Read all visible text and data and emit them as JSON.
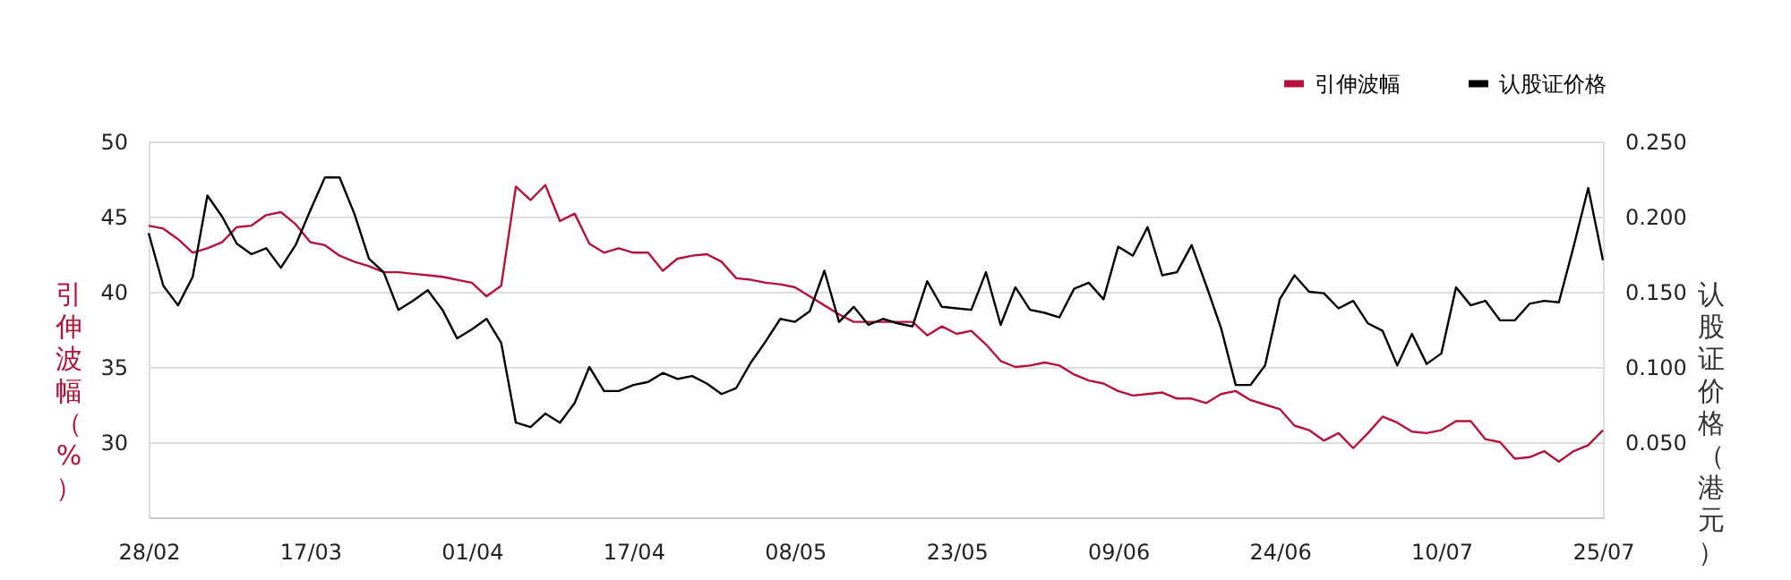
{
  "chart_data": {
    "type": "line",
    "categories": [
      "28/02",
      null,
      null,
      null,
      null,
      null,
      null,
      null,
      null,
      null,
      null,
      "17/03",
      null,
      null,
      null,
      null,
      null,
      null,
      null,
      null,
      null,
      null,
      "01/04",
      null,
      null,
      null,
      null,
      null,
      null,
      null,
      null,
      null,
      null,
      "17/04",
      null,
      null,
      null,
      null,
      null,
      null,
      null,
      null,
      null,
      null,
      "08/05",
      null,
      null,
      null,
      null,
      null,
      null,
      null,
      null,
      null,
      null,
      "23/05",
      null,
      null,
      null,
      null,
      null,
      null,
      null,
      null,
      null,
      null,
      "09/06",
      null,
      null,
      null,
      null,
      null,
      null,
      null,
      null,
      null,
      null,
      "24/06",
      null,
      null,
      null,
      null,
      null,
      null,
      null,
      null,
      null,
      null,
      "10/07",
      null,
      null,
      null,
      null,
      null,
      null,
      null,
      null,
      null,
      null,
      "25/07"
    ],
    "series": [
      {
        "name": "引伸波幅",
        "color": "#b5123a",
        "values": [
          44.4,
          44.2,
          43.5,
          42.6,
          42.9,
          43.3,
          44.3,
          44.4,
          45.1,
          45.3,
          44.5,
          43.3,
          43.1,
          42.4,
          42.0,
          41.7,
          41.3,
          41.3,
          41.2,
          41.1,
          41.0,
          40.8,
          40.6,
          39.7,
          40.4,
          47.0,
          46.1,
          47.1,
          44.7,
          45.2,
          43.2,
          42.6,
          42.9,
          42.6,
          42.6,
          41.4,
          42.2,
          42.4,
          42.5,
          42.0,
          40.9,
          40.8,
          40.6,
          40.5,
          40.3,
          39.7,
          39.1,
          38.5,
          38.0,
          38.0,
          38.0,
          38.0,
          38.0,
          37.1,
          37.7,
          37.2,
          37.4,
          36.5,
          35.4,
          35.0,
          35.1,
          35.3,
          35.1,
          34.5,
          34.1,
          33.9,
          33.4,
          33.1,
          33.2,
          33.3,
          32.9,
          32.9,
          32.6,
          33.2,
          33.4,
          32.8,
          32.5,
          32.2,
          31.1,
          30.8,
          30.1,
          30.6,
          29.6,
          30.6,
          31.7,
          31.3,
          30.7,
          30.6,
          30.8,
          31.4,
          31.4,
          30.2,
          30.0,
          28.9,
          29.0,
          29.4,
          28.7,
          29.4,
          29.8,
          30.8
        ]
      },
      {
        "name": "认股证价格",
        "color": "#000000",
        "axis": "y2",
        "values": [
          0.189,
          0.154,
          0.141,
          0.16,
          0.214,
          0.2,
          0.182,
          0.175,
          0.179,
          0.166,
          0.181,
          0.204,
          0.226,
          0.226,
          0.202,
          0.172,
          0.163,
          0.138,
          0.144,
          0.151,
          0.138,
          0.119,
          0.125,
          0.132,
          0.116,
          0.063,
          0.06,
          0.069,
          0.063,
          0.076,
          0.1,
          0.084,
          0.084,
          0.088,
          0.09,
          0.096,
          0.092,
          0.094,
          0.089,
          0.082,
          0.086,
          0.103,
          0.117,
          0.132,
          0.13,
          0.137,
          0.164,
          0.13,
          0.14,
          0.128,
          0.132,
          0.129,
          0.127,
          0.157,
          0.14,
          0.139,
          0.138,
          0.163,
          0.128,
          0.153,
          0.138,
          0.136,
          0.133,
          0.152,
          0.156,
          0.145,
          0.18,
          0.174,
          0.193,
          0.161,
          0.163,
          0.181,
          0.154,
          0.126,
          0.088,
          0.088,
          0.101,
          0.145,
          0.161,
          0.15,
          0.149,
          0.139,
          0.144,
          0.129,
          0.124,
          0.101,
          0.122,
          0.102,
          0.109,
          0.153,
          0.141,
          0.144,
          0.131,
          0.131,
          0.142,
          0.144,
          0.143,
          0.18,
          0.219,
          0.171
        ]
      }
    ],
    "ylabel": "引伸波幅（%）",
    "y2label": "认股证价格（港元）",
    "ylim": [
      25,
      50
    ],
    "yticks": [
      30,
      35,
      40,
      45,
      50
    ],
    "y2lim": [
      0,
      0.25
    ],
    "y2ticks": [
      {
        "value": 0.05,
        "label": "0.050"
      },
      {
        "value": 0.1,
        "label": "0.100"
      },
      {
        "value": 0.15,
        "label": "0.150"
      },
      {
        "value": 0.2,
        "label": "0.200"
      },
      {
        "value": 0.25,
        "label": "0.250"
      }
    ],
    "grid": "y",
    "legend": "top right",
    "marker": "none",
    "line_style": "solid"
  }
}
